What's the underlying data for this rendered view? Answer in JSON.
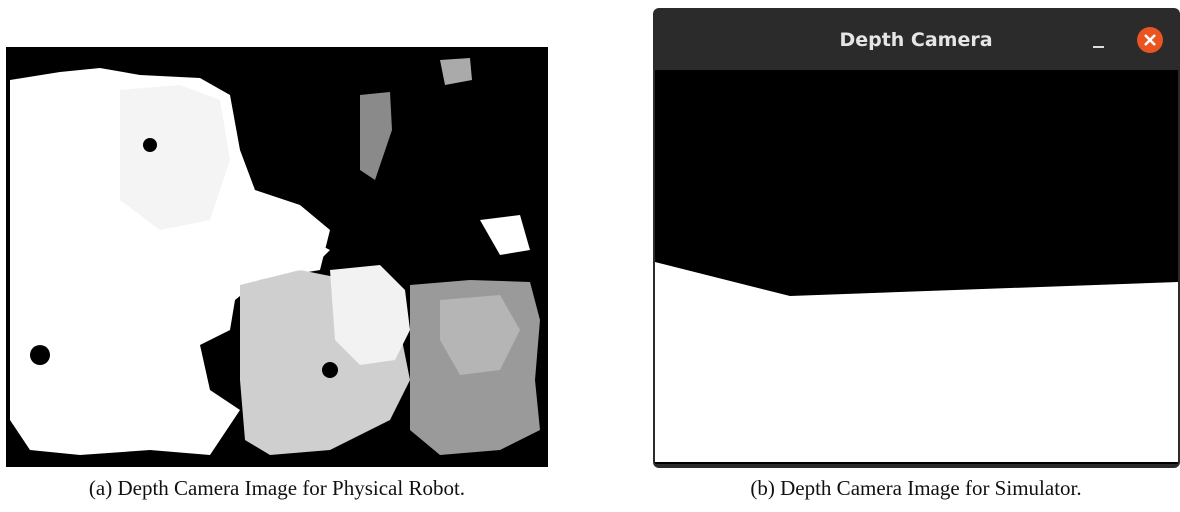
{
  "figure": {
    "panels": [
      {
        "caption": "(a) Depth Camera Image for Physical Robot."
      },
      {
        "caption": "(b) Depth Camera Image for Simulator.",
        "window_title": "Depth Camera"
      }
    ]
  }
}
